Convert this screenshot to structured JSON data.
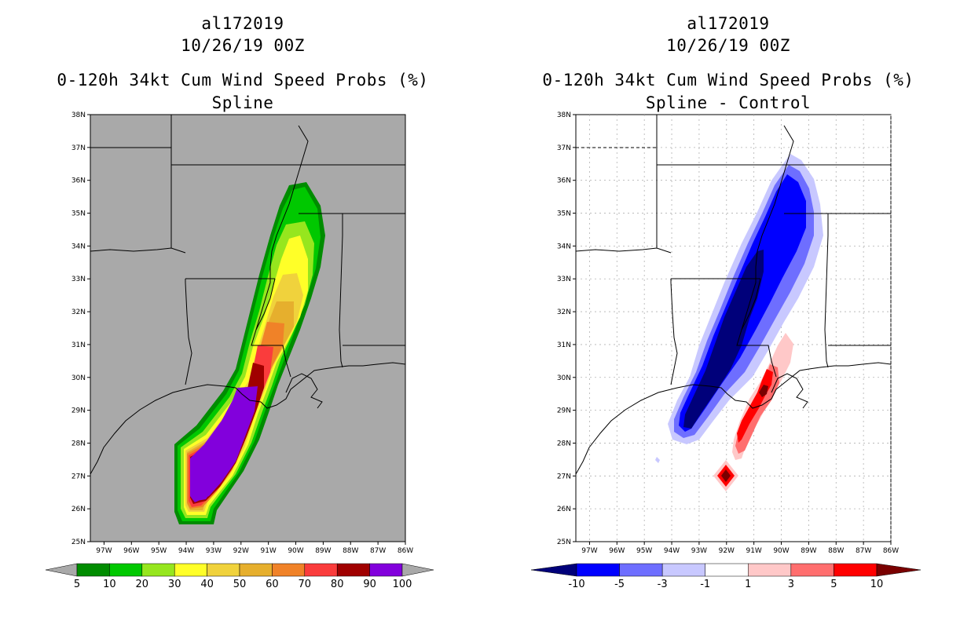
{
  "left_panel": {
    "title_storm": "al172019",
    "title_time": "10/26/19 00Z",
    "title_product": "0-120h 34kt Cum Wind Speed Probs (%)",
    "title_method": "Spline",
    "lat_labels": [
      "38N",
      "37N",
      "36N",
      "35N",
      "34N",
      "33N",
      "32N",
      "31N",
      "30N",
      "29N",
      "28N",
      "27N",
      "26N",
      "25N"
    ],
    "lon_labels": [
      "97W",
      "96W",
      "95W",
      "94W",
      "93W",
      "92W",
      "91W",
      "90W",
      "89W",
      "88W",
      "87W",
      "86W"
    ],
    "colorbar": {
      "labels": [
        "5",
        "10",
        "20",
        "30",
        "40",
        "50",
        "60",
        "70",
        "80",
        "90",
        "100"
      ],
      "colors": [
        "#008c00",
        "#00c800",
        "#96e61e",
        "#ffff28",
        "#f0d23c",
        "#e6af2d",
        "#f08228",
        "#fa3c3c",
        "#a00000",
        "#8200dc"
      ]
    }
  },
  "right_panel": {
    "title_storm": "al172019",
    "title_time": "10/26/19 00Z",
    "title_product": "0-120h 34kt Cum Wind Speed Probs (%)",
    "title_method": "Spline - Control",
    "lat_labels": [
      "38N",
      "37N",
      "36N",
      "35N",
      "34N",
      "33N",
      "32N",
      "31N",
      "30N",
      "29N",
      "28N",
      "27N",
      "26N",
      "25N"
    ],
    "lon_labels": [
      "97W",
      "96W",
      "95W",
      "94W",
      "93W",
      "92W",
      "91W",
      "90W",
      "89W",
      "88W",
      "87W",
      "86W"
    ],
    "colorbar": {
      "labels": [
        "-10",
        "-5",
        "-3",
        "-1",
        "1",
        "3",
        "5",
        "10"
      ],
      "colors": [
        "#00007a",
        "#0000ff",
        "#6e6eff",
        "#c8c8ff",
        "#ffffff",
        "#ffc8c8",
        "#ff6e6e",
        "#ff0000",
        "#7a0000"
      ]
    }
  }
}
